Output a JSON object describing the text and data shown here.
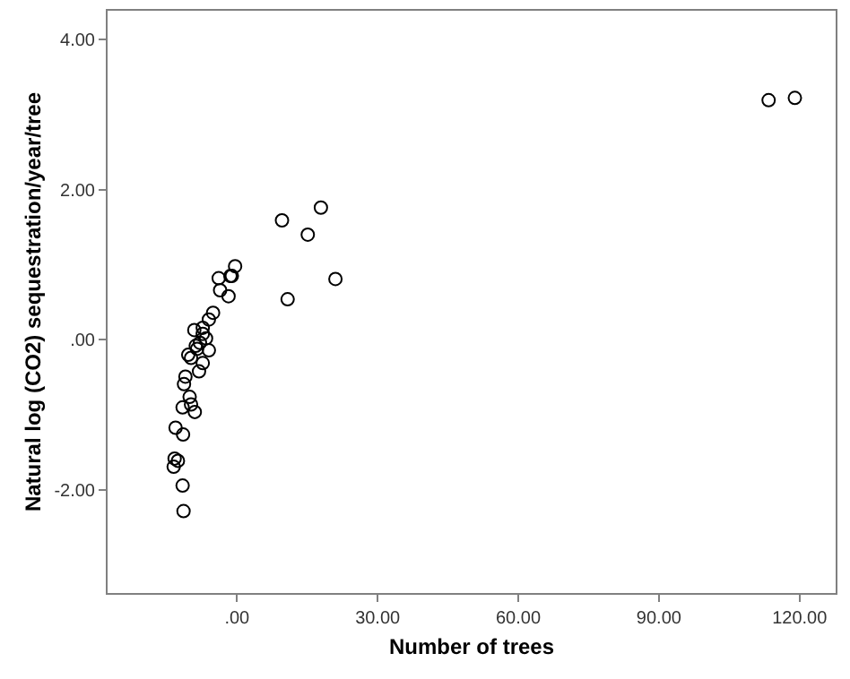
{
  "chart_data": {
    "type": "scatter",
    "xlabel": "Number of trees",
    "ylabel": "Natural log (CO2) sequestration/year/tree",
    "x": [
      9.6,
      17.9,
      15.1,
      21.0,
      10.8,
      -0.4,
      -1.4,
      -1.1,
      -3.9,
      -3.6,
      -1.8,
      -5.1,
      -6.0,
      -7.3,
      -9.1,
      -7.3,
      -6.6,
      -7.9,
      -8.8,
      -8.5,
      -10.4,
      -9.8,
      -6.0,
      -7.3,
      -8.1,
      -11.0,
      -11.3,
      -10.1,
      -9.8,
      -11.6,
      -9.0,
      -13.1,
      -11.5,
      -13.3,
      -12.6,
      -13.5,
      -11.6,
      -11.4,
      113.4,
      119.0
    ],
    "values": [
      1.59,
      1.76,
      1.4,
      0.81,
      0.54,
      0.98,
      0.85,
      0.85,
      0.82,
      0.66,
      0.58,
      0.36,
      0.27,
      0.16,
      0.13,
      0.08,
      0.02,
      -0.04,
      -0.08,
      -0.12,
      -0.2,
      -0.24,
      -0.14,
      -0.31,
      -0.42,
      -0.49,
      -0.59,
      -0.76,
      -0.86,
      -0.9,
      -0.96,
      -1.17,
      -1.26,
      -1.58,
      -1.61,
      -1.69,
      -1.94,
      -2.28,
      3.19,
      3.22
    ],
    "color": "#000000",
    "marker": "circle",
    "grid": false,
    "legend": false,
    "xlim": [
      -27.6,
      127.7
    ],
    "ylim": [
      -3.37,
      4.38
    ],
    "xticks": [
      {
        "value": 0,
        "label": ".00"
      },
      {
        "value": 30,
        "label": "30.00"
      },
      {
        "value": 60,
        "label": "60.00"
      },
      {
        "value": 90,
        "label": "90.00"
      },
      {
        "value": 120,
        "label": "120.00"
      }
    ],
    "yticks": [
      {
        "value": -2,
        "label": "-2.00"
      },
      {
        "value": 0,
        "label": ".00"
      },
      {
        "value": 2,
        "label": "2.00"
      },
      {
        "value": 4,
        "label": "4.00"
      }
    ]
  }
}
